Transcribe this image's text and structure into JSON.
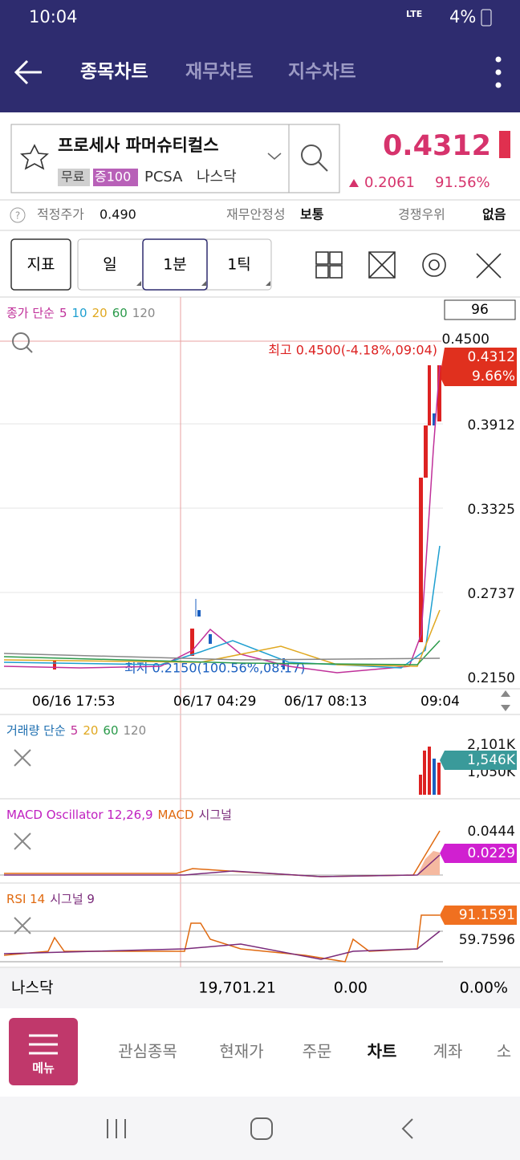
{
  "status_bar": {
    "time": "10:04",
    "network": "LTE",
    "battery": "4%"
  },
  "header": {
    "tabs": [
      "종목차트",
      "재무차트",
      "지수차트"
    ]
  },
  "stock": {
    "name": "프로세사 파머슈티컬스",
    "tags": [
      "무료",
      "증100"
    ],
    "ticker": "PCSA",
    "exchange": "나스닥",
    "price": "0.4312",
    "change": "0.2061",
    "change_rate": "91.56%"
  },
  "info": [
    {
      "label": "적정주가",
      "value": "0.490"
    },
    {
      "label": "재무안정성",
      "value": "보통"
    },
    {
      "label": "경쟁우위",
      "value": "없음"
    }
  ],
  "toolbar": {
    "indicator": "지표",
    "periods": [
      "일",
      "1분",
      "1틱"
    ]
  },
  "price_chart": {
    "legend": [
      "종가 단순",
      "5",
      "10",
      "20",
      "60",
      "120"
    ],
    "count": "96",
    "axis": [
      "0.4500",
      "0.3912",
      "0.3325",
      "0.2737",
      "0.2150"
    ],
    "high": "최고 0.4500(-4.18%,09:04)",
    "low": "최저 0.2150(100.56%,08:17)",
    "last": "0.4312",
    "last_rate": "9.66%"
  },
  "time_axis": [
    "06/16 17:53",
    "06/17 04:29",
    "06/17 08:13",
    "09:04"
  ],
  "volume": {
    "legend": [
      "거래량 단순",
      "5",
      "20",
      "60",
      "120"
    ],
    "axis": [
      "2,101K",
      "1,050K"
    ],
    "last": "1,546K"
  },
  "macd": {
    "legend": [
      "MACD Oscillator 12,26,9",
      "MACD",
      "시그널"
    ],
    "axis": [
      "0.0444"
    ],
    "last": "0.0229"
  },
  "rsi": {
    "legend": [
      "RSI 14",
      "시그널 9"
    ],
    "last": "91.1591",
    "axis": [
      "59.7596"
    ]
  },
  "index_bar": {
    "name": "나스닥",
    "value": "19,701.21",
    "change": "0.00",
    "rate": "0.00%"
  },
  "bottom_nav": {
    "menu": "메뉴",
    "tabs": [
      "관심종목",
      "현재가",
      "주문",
      "차트",
      "계좌",
      "소"
    ]
  }
}
